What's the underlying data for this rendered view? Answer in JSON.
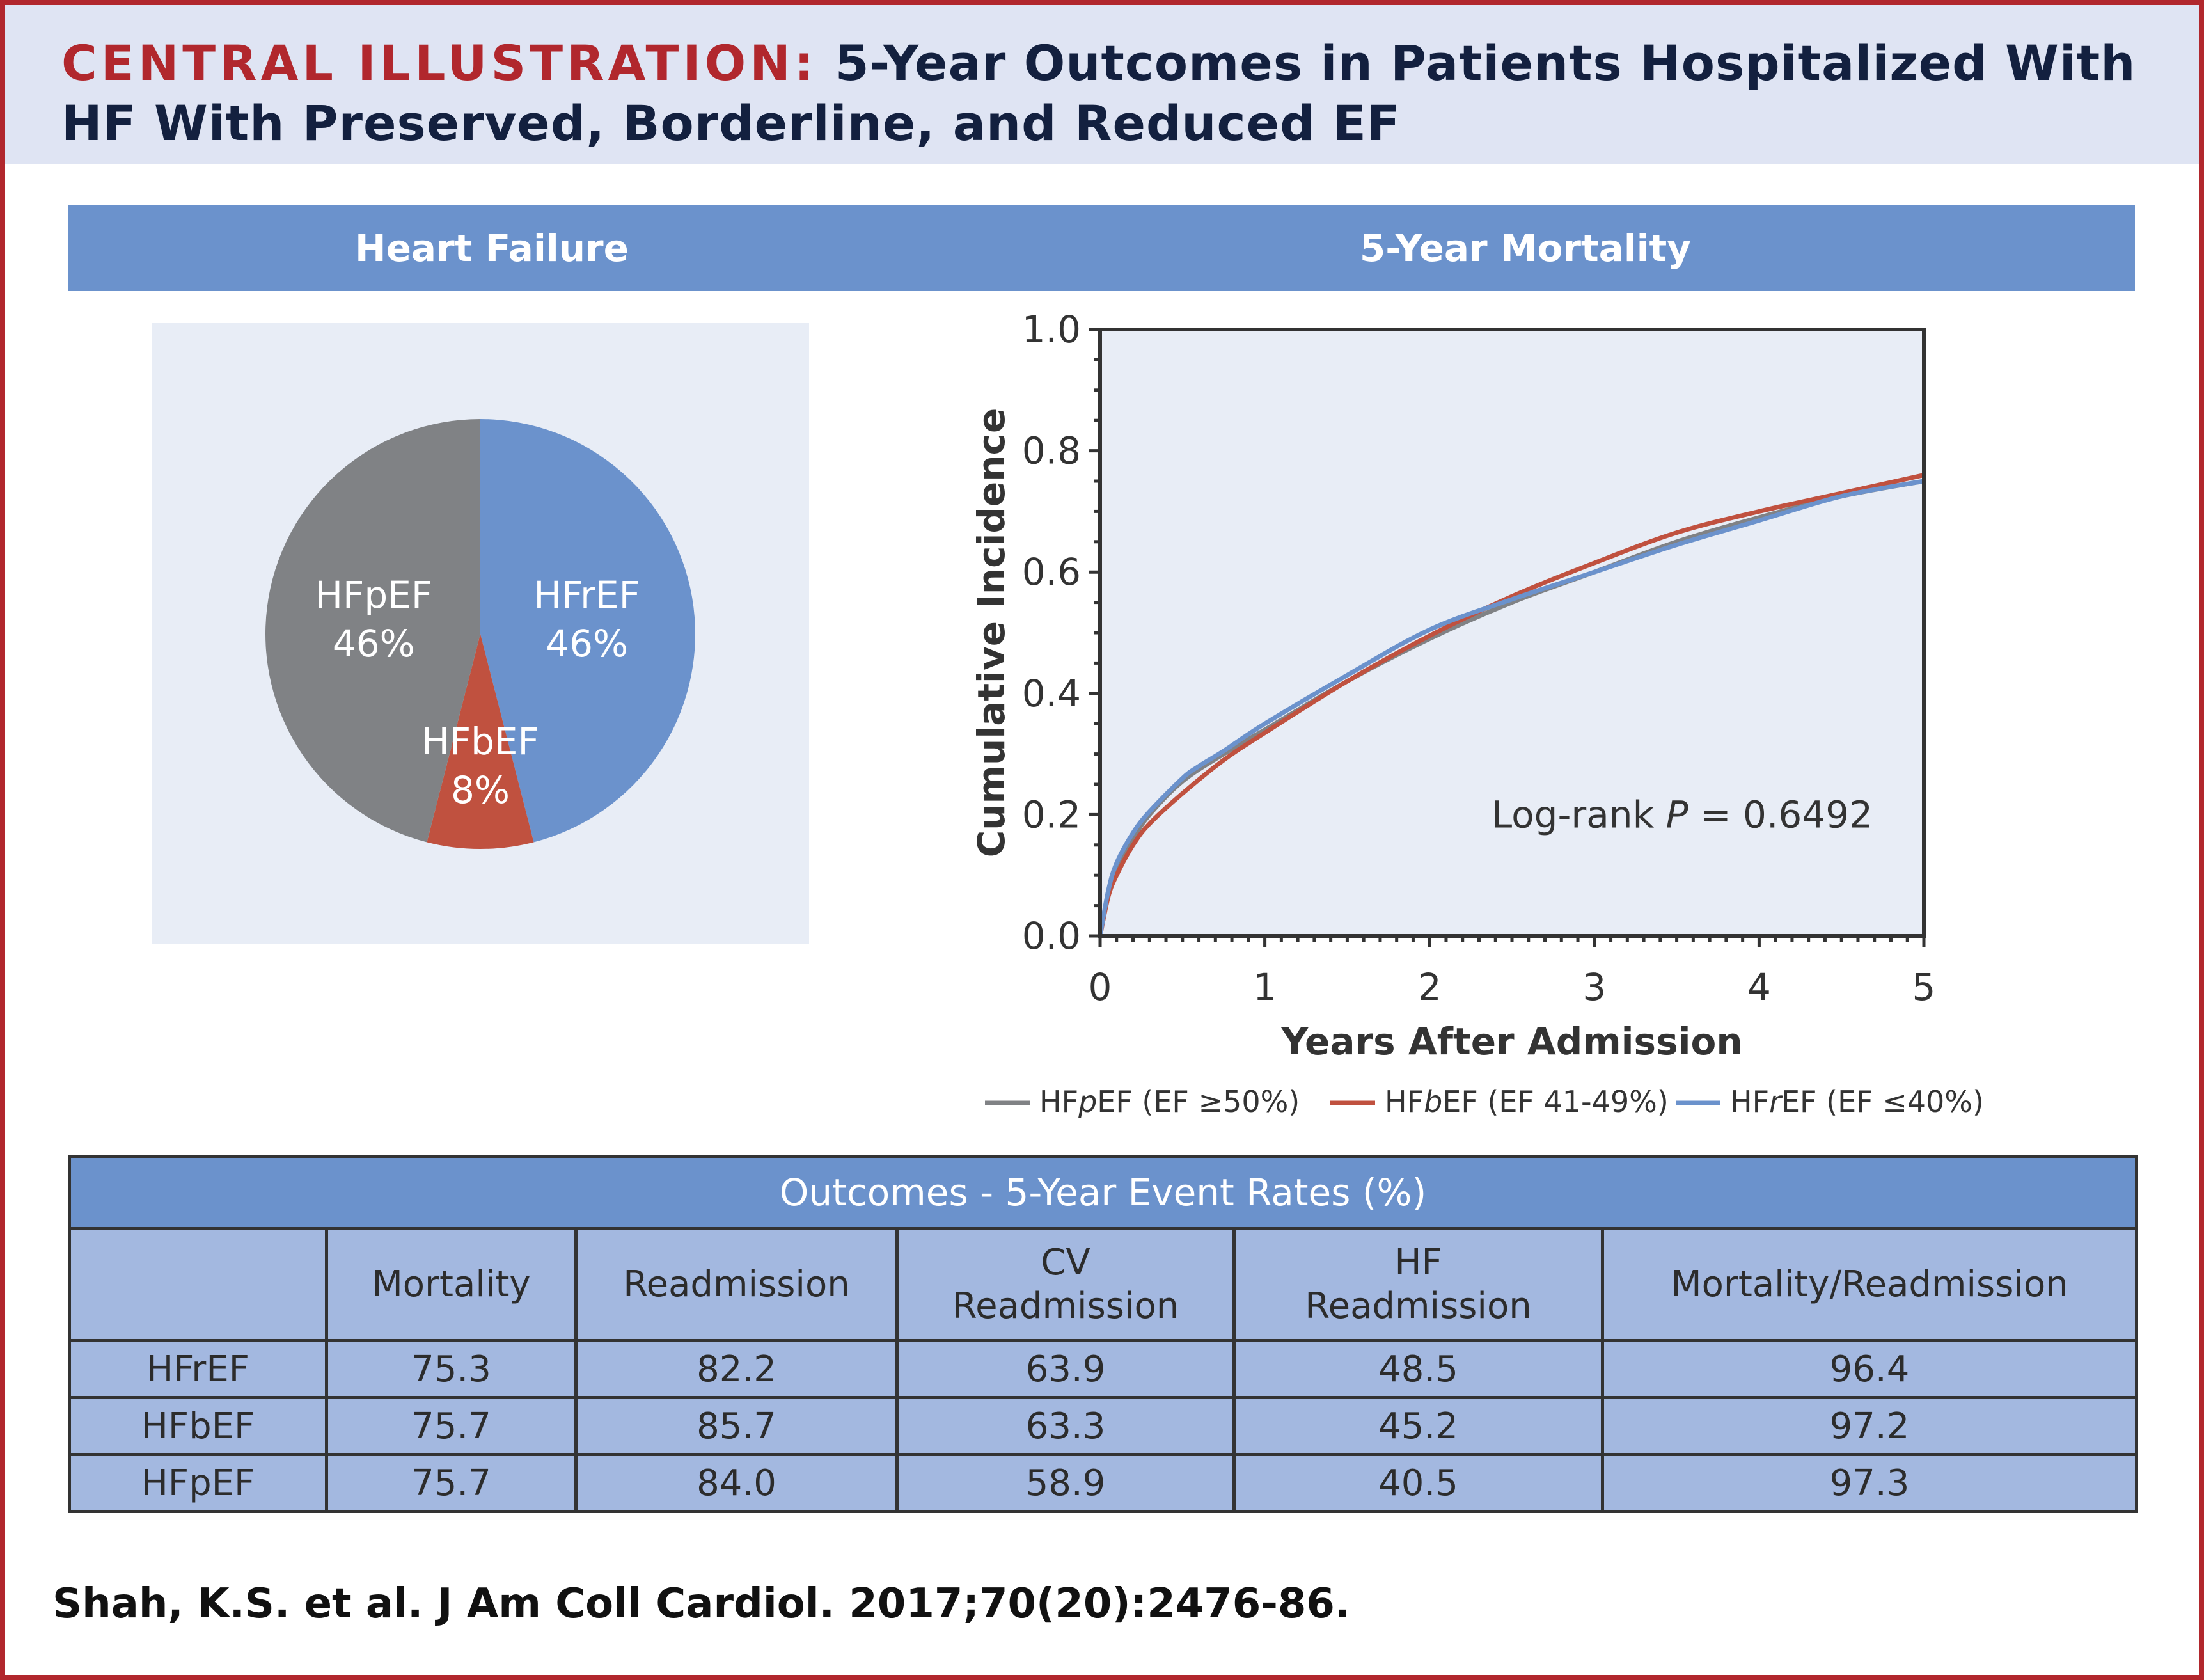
{
  "header": {
    "lead": "CENTRAL ILLUSTRATION:",
    "title": "5-Year Outcomes in Patients Hospitalized With HF With Preserved, Borderline, and Reduced EF"
  },
  "bands": {
    "left": "Heart Failure",
    "right": "5-Year Mortality"
  },
  "colors": {
    "accent_red": "#b1272d",
    "band_blue": "#6b92cc",
    "hfpef": "#808285",
    "hfbef": "#c0513f",
    "hfref": "#6b92cc",
    "table_cell": "#a3b8e0"
  },
  "chart_data": [
    {
      "type": "pie",
      "title": "Heart Failure",
      "slices": [
        {
          "label": "HFrEF",
          "value": 46,
          "display": "46%",
          "color": "#6b92cc"
        },
        {
          "label": "HFbEF",
          "value": 8,
          "display": "8%",
          "color": "#c0513f"
        },
        {
          "label": "HFpEF",
          "value": 46,
          "display": "46%",
          "color": "#808285"
        }
      ]
    },
    {
      "type": "line",
      "title": "5-Year Mortality",
      "xlabel": "Years After Admission",
      "ylabel": "Cumulative Incidence",
      "xlim": [
        0,
        5
      ],
      "ylim": [
        0,
        1.0
      ],
      "xticks": [
        "0",
        "1",
        "2",
        "3",
        "4",
        "5"
      ],
      "yticks": [
        "0.0",
        "0.2",
        "0.4",
        "0.6",
        "0.8",
        "1.0"
      ],
      "grid": false,
      "legend_position": "bottom",
      "annotation": {
        "prefix": "Log-rank ",
        "italic": "P",
        "suffix": " = 0.6492"
      },
      "series": [
        {
          "name": "HFpEF (EF ≥50%)",
          "legend_pre": "HF",
          "legend_it": "p",
          "legend_post": "EF (EF ≥50%)",
          "color": "#808285",
          "x": [
            0,
            0.05,
            0.1,
            0.2,
            0.3,
            0.5,
            0.75,
            1.0,
            1.5,
            2.0,
            2.5,
            3.0,
            3.5,
            4.0,
            4.5,
            5.0
          ],
          "y": [
            0,
            0.07,
            0.11,
            0.16,
            0.2,
            0.255,
            0.3,
            0.34,
            0.42,
            0.49,
            0.55,
            0.6,
            0.65,
            0.69,
            0.725,
            0.75
          ]
        },
        {
          "name": "HFbEF (EF 41-49%)",
          "legend_pre": "HF",
          "legend_it": "b",
          "legend_post": "EF (EF 41-49%)",
          "color": "#c0513f",
          "x": [
            0,
            0.05,
            0.1,
            0.2,
            0.3,
            0.5,
            0.75,
            1.0,
            1.5,
            2.0,
            2.5,
            3.0,
            3.5,
            4.0,
            4.5,
            5.0
          ],
          "y": [
            0,
            0.065,
            0.1,
            0.15,
            0.185,
            0.235,
            0.29,
            0.335,
            0.42,
            0.495,
            0.56,
            0.615,
            0.665,
            0.7,
            0.73,
            0.76
          ]
        },
        {
          "name": "HFrEF (EF ≤40%)",
          "legend_pre": "HF",
          "legend_it": "r",
          "legend_post": "EF (EF ≤40%)",
          "color": "#6b92cc",
          "x": [
            0,
            0.05,
            0.1,
            0.2,
            0.3,
            0.5,
            0.6,
            0.75,
            1.0,
            1.5,
            2.0,
            2.5,
            3.0,
            3.5,
            4.0,
            4.5,
            5.0
          ],
          "y": [
            0,
            0.075,
            0.12,
            0.17,
            0.205,
            0.26,
            0.28,
            0.305,
            0.35,
            0.43,
            0.505,
            0.555,
            0.6,
            0.645,
            0.685,
            0.725,
            0.75
          ]
        }
      ]
    },
    {
      "type": "table",
      "title": "Outcomes - 5-Year Event Rates (%)",
      "columns": [
        "",
        "Mortality",
        "Readmission",
        "CV\nReadmission",
        "HF\nReadmission",
        "Mortality/Readmission"
      ],
      "rows": [
        [
          "HFrEF",
          "75.3",
          "82.2",
          "63.9",
          "48.5",
          "96.4"
        ],
        [
          "HFbEF",
          "75.7",
          "85.7",
          "63.3",
          "45.2",
          "97.2"
        ],
        [
          "HFpEF",
          "75.7",
          "84.0",
          "58.9",
          "40.5",
          "97.3"
        ]
      ]
    }
  ],
  "table": {
    "caption": "Outcomes - 5-Year Event Rates (%)",
    "headers": [
      "",
      "Mortality",
      "Readmission",
      "CV Readmission",
      "HF Readmission",
      "Mortality/Readmission"
    ],
    "header_lines": [
      [
        ""
      ],
      [
        "Mortality"
      ],
      [
        "Readmission"
      ],
      [
        "CV",
        "Readmission"
      ],
      [
        "HF",
        "Readmission"
      ],
      [
        "Mortality/Readmission"
      ]
    ],
    "rows": [
      [
        "HFrEF",
        "75.3",
        "82.2",
        "63.9",
        "48.5",
        "96.4"
      ],
      [
        "HFbEF",
        "75.7",
        "85.7",
        "63.3",
        "45.2",
        "97.2"
      ],
      [
        "HFpEF",
        "75.7",
        "84.0",
        "58.9",
        "40.5",
        "97.3"
      ]
    ]
  },
  "footer": {
    "citation": "Shah, K.S. et al. J Am Coll Cardiol. 2017;70(20):2476-86."
  }
}
